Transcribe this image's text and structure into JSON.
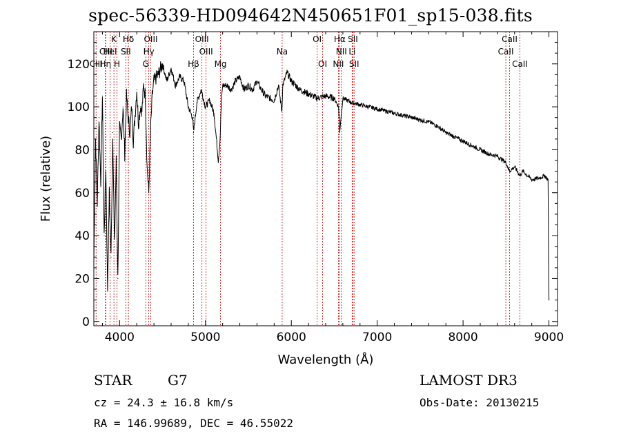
{
  "chart_data": {
    "type": "line",
    "title": "spec-56339-HD094642N450651F01_sp15-038.fits",
    "xlabel": "Wavelength (Å)",
    "ylabel": "Flux (relative)",
    "xlim": [
      3700,
      9100
    ],
    "ylim": [
      -2,
      135
    ],
    "xticks": [
      4000,
      5000,
      6000,
      7000,
      8000,
      9000
    ],
    "yticks": [
      0,
      20,
      40,
      60,
      80,
      100,
      120
    ],
    "x": [
      3700,
      3720,
      3740,
      3760,
      3780,
      3800,
      3820,
      3840,
      3860,
      3880,
      3900,
      3920,
      3940,
      3960,
      3980,
      4000,
      4020,
      4040,
      4060,
      4080,
      4100,
      4120,
      4140,
      4160,
      4180,
      4200,
      4220,
      4240,
      4260,
      4280,
      4300,
      4320,
      4340,
      4360,
      4380,
      4400,
      4450,
      4500,
      4550,
      4600,
      4650,
      4700,
      4750,
      4800,
      4850,
      4861,
      4900,
      4950,
      5000,
      5050,
      5100,
      5150,
      5170,
      5183,
      5200,
      5250,
      5300,
      5350,
      5400,
      5450,
      5500,
      5550,
      5600,
      5650,
      5700,
      5750,
      5800,
      5850,
      5890,
      5900,
      5950,
      6000,
      6100,
      6200,
      6300,
      6400,
      6500,
      6550,
      6563,
      6580,
      6600,
      6700,
      6800,
      6900,
      7000,
      7100,
      7200,
      7300,
      7400,
      7500,
      7600,
      7700,
      7800,
      7900,
      8000,
      8100,
      8200,
      8300,
      8400,
      8500,
      8542,
      8600,
      8662,
      8700,
      8800,
      8900,
      8950,
      8990,
      9000
    ],
    "y": [
      28,
      85,
      55,
      95,
      65,
      105,
      40,
      72,
      15,
      60,
      30,
      88,
      35,
      75,
      20,
      90,
      85,
      100,
      78,
      105,
      95,
      88,
      100,
      84,
      96,
      108,
      92,
      100,
      98,
      110,
      105,
      72,
      60,
      88,
      105,
      112,
      115,
      120,
      112,
      118,
      110,
      114,
      112,
      100,
      95,
      88,
      102,
      108,
      100,
      103,
      97,
      75,
      85,
      100,
      110,
      110,
      108,
      112,
      114,
      108,
      110,
      108,
      112,
      108,
      105,
      104,
      103,
      110,
      98,
      110,
      116,
      112,
      108,
      106,
      104,
      105,
      104,
      100,
      88,
      96,
      104,
      102,
      101,
      100,
      99,
      98,
      97,
      96,
      95,
      94,
      93,
      91,
      88,
      86,
      84,
      82,
      80,
      78,
      77,
      74,
      70,
      72,
      68,
      70,
      66,
      67,
      68,
      66,
      10
    ],
    "line_markers": [
      {
        "label": "Hδ",
        "wl": 4102,
        "row": 0
      },
      {
        "label": "CIII",
        "wl": 3840,
        "row": 1
      },
      {
        "label": "CIII",
        "wl": 3726,
        "row": 2
      },
      {
        "label": "HeI",
        "wl": 3889,
        "row": 1
      },
      {
        "label": "Hη",
        "wl": 3835,
        "row": 2
      },
      {
        "label": "K",
        "wl": 3934,
        "row": 0
      },
      {
        "label": "SII",
        "wl": 4072,
        "row": 1
      },
      {
        "label": "H",
        "wl": 3969,
        "row": 2
      },
      {
        "label": "Hδ",
        "wl": 4102,
        "row": 0
      },
      {
        "label": "OIII",
        "wl": 4363,
        "row": 0
      },
      {
        "label": "Hγ",
        "wl": 4340,
        "row": 1
      },
      {
        "label": "G",
        "wl": 4305,
        "row": 2
      },
      {
        "label": "Hβ",
        "wl": 4861,
        "row": 2
      },
      {
        "label": "OIII",
        "wl": 4959,
        "row": 0
      },
      {
        "label": "OIII",
        "wl": 5007,
        "row": 1
      },
      {
        "label": "Mg",
        "wl": 5175,
        "row": 2
      },
      {
        "label": "Na",
        "wl": 5893,
        "row": 1
      },
      {
        "label": "OI",
        "wl": 6300,
        "row": 0
      },
      {
        "label": "OI",
        "wl": 6364,
        "row": 2
      },
      {
        "label": "Hα",
        "wl": 6563,
        "row": 0
      },
      {
        "label": "NII",
        "wl": 6583,
        "row": 1
      },
      {
        "label": "NII",
        "wl": 6548,
        "row": 2
      },
      {
        "label": "SII",
        "wl": 6717,
        "row": 0
      },
      {
        "label": "Li",
        "wl": 6708,
        "row": 1
      },
      {
        "label": "SII",
        "wl": 6731,
        "row": 2
      },
      {
        "label": "CaII",
        "wl": 8542,
        "row": 0
      },
      {
        "label": "CaII",
        "wl": 8498,
        "row": 1
      },
      {
        "label": "CaII",
        "wl": 8662,
        "row": 2
      }
    ]
  },
  "info": {
    "object": "STAR",
    "subclass": "G7",
    "velocity": "cz = 24.3 ± 16.8 km/s",
    "coords": "RA = 146.99689, DEC =  46.55022",
    "survey": "LAMOST DR3",
    "obs_date": "Obs-Date: 20130215"
  }
}
